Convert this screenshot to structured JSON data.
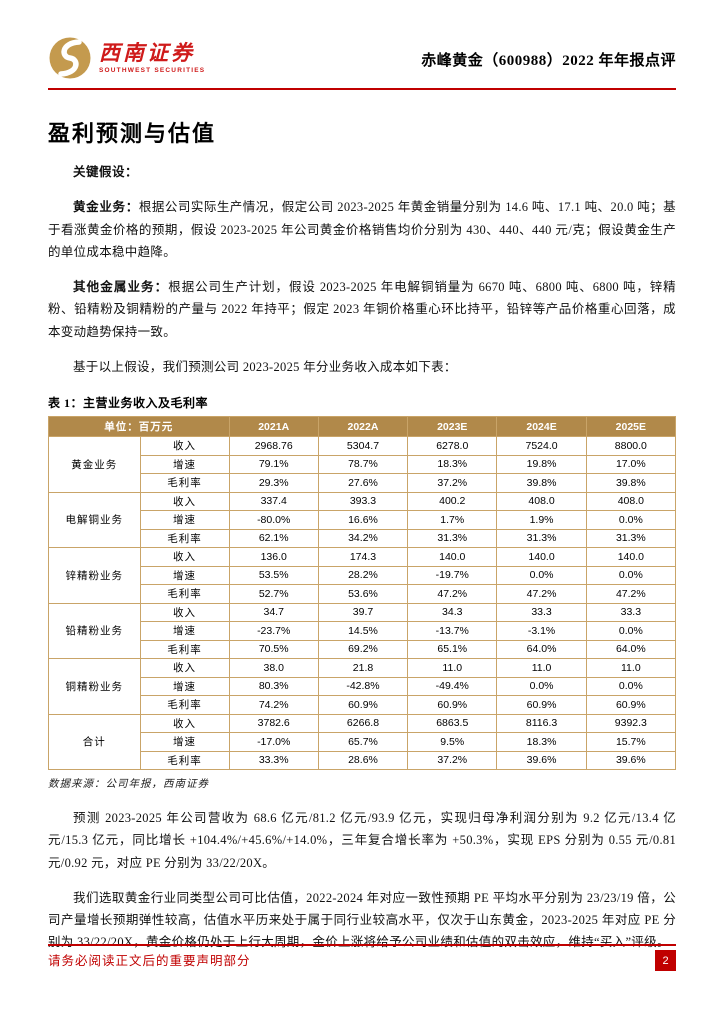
{
  "header": {
    "logo_icon": "southwest-securities-swirl",
    "logo_cn": "西南证券",
    "logo_en": "SOUTHWEST SECURITIES",
    "report_title": "赤峰黄金（600988）2022 年年报点评"
  },
  "section_title": "盈利预测与估值",
  "paragraphs": {
    "key_assumptions_label": "关键假设：",
    "gold_lead": "黄金业务：",
    "gold_body": "根据公司实际生产情况，假定公司 2023-2025 年黄金销量分别为 14.6 吨、17.1 吨、20.0 吨；基于看涨黄金价格的预期，假设 2023-2025 年公司黄金价格销售均价分别为 430、440、440 元/克；假设黄金生产的单位成本稳中趋降。",
    "metal_lead": "其他金属业务：",
    "metal_body": "根据公司生产计划，假设 2023-2025 年电解铜销量为 6670 吨、6800 吨、6800 吨，锌精粉、铅精粉及铜精粉的产量与 2022 年持平；假定 2023 年铜价格重心环比持平，铅锌等产品价格重心回落，成本变动趋势保持一致。",
    "table_intro": "基于以上假设，我们预测公司 2023-2025 年分业务收入成本如下表：",
    "forecast": "预测 2023-2025 年公司营收为 68.6 亿元/81.2 亿元/93.9 亿元，实现归母净利润分别为 9.2 亿元/13.4 亿元/15.3 亿元，同比增长 +104.4%/+45.6%/+14.0%，三年复合增长率为 +50.3%，实现 EPS 分别为 0.55 元/0.81 元/0.92 元，对应 PE 分别为 33/22/20X。",
    "valuation": "我们选取黄金行业同类型公司可比估值，2022-2024 年对应一致性预期 PE 平均水平分别为 23/23/19 倍，公司产量增长预期弹性较高，估值水平历来处于属于同行业较高水平，仅次于山东黄金，2023-2025 年对应 PE 分别为 33/22/20X，黄金价格仍处于上行大周期，金价上涨将给予公司业绩和估值的双击效应，维持“买入”评级。"
  },
  "table": {
    "caption": "表 1：主营业务收入及毛利率",
    "unit_header": "单位：百万元",
    "year_headers": [
      "2021A",
      "2022A",
      "2023E",
      "2024E",
      "2025E"
    ],
    "row_labels": [
      "收入",
      "增速",
      "毛利率"
    ],
    "groups": [
      {
        "name": "黄金业务",
        "rows": [
          [
            "2968.76",
            "5304.7",
            "6278.0",
            "7524.0",
            "8800.0"
          ],
          [
            "79.1%",
            "78.7%",
            "18.3%",
            "19.8%",
            "17.0%"
          ],
          [
            "29.3%",
            "27.6%",
            "37.2%",
            "39.8%",
            "39.8%"
          ]
        ]
      },
      {
        "name": "电解铜业务",
        "rows": [
          [
            "337.4",
            "393.3",
            "400.2",
            "408.0",
            "408.0"
          ],
          [
            "-80.0%",
            "16.6%",
            "1.7%",
            "1.9%",
            "0.0%"
          ],
          [
            "62.1%",
            "34.2%",
            "31.3%",
            "31.3%",
            "31.3%"
          ]
        ]
      },
      {
        "name": "锌精粉业务",
        "rows": [
          [
            "136.0",
            "174.3",
            "140.0",
            "140.0",
            "140.0"
          ],
          [
            "53.5%",
            "28.2%",
            "-19.7%",
            "0.0%",
            "0.0%"
          ],
          [
            "52.7%",
            "53.6%",
            "47.2%",
            "47.2%",
            "47.2%"
          ]
        ]
      },
      {
        "name": "铅精粉业务",
        "rows": [
          [
            "34.7",
            "39.7",
            "34.3",
            "33.3",
            "33.3"
          ],
          [
            "-23.7%",
            "14.5%",
            "-13.7%",
            "-3.1%",
            "0.0%"
          ],
          [
            "70.5%",
            "69.2%",
            "65.1%",
            "64.0%",
            "64.0%"
          ]
        ]
      },
      {
        "name": "铜精粉业务",
        "rows": [
          [
            "38.0",
            "21.8",
            "11.0",
            "11.0",
            "11.0"
          ],
          [
            "80.3%",
            "-42.8%",
            "-49.4%",
            "0.0%",
            "0.0%"
          ],
          [
            "74.2%",
            "60.9%",
            "60.9%",
            "60.9%",
            "60.9%"
          ]
        ]
      },
      {
        "name": "合计",
        "rows": [
          [
            "3782.6",
            "6266.8",
            "6863.5",
            "8116.3",
            "9392.3"
          ],
          [
            "-17.0%",
            "65.7%",
            "9.5%",
            "18.3%",
            "15.7%"
          ],
          [
            "33.3%",
            "28.6%",
            "37.2%",
            "39.6%",
            "39.6%"
          ]
        ]
      }
    ]
  },
  "source_note": "数据来源：公司年报，西南证券",
  "footer": {
    "disclaimer": "请务必阅读正文后的重要声明部分",
    "page_number": "2"
  },
  "colors": {
    "accent_red": "#c00000",
    "logo_red": "#cf1a1a",
    "table_header_gold": "#b1894a",
    "table_border_gold": "#c9a468"
  }
}
